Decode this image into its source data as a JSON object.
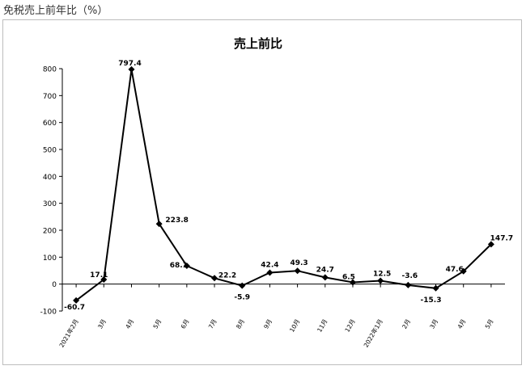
{
  "page_title": "免税売上前年比（%）",
  "chart_data": {
    "type": "line",
    "title": "売上前比",
    "xlabel": "",
    "ylabel": "",
    "ylim": [
      -100,
      800
    ],
    "yticks": [
      -100,
      0,
      100,
      200,
      300,
      400,
      500,
      600,
      700,
      800
    ],
    "grid": false,
    "legend": "none",
    "categories": [
      "2021年2月",
      "3月",
      "4月",
      "5月",
      "6月",
      "7月",
      "8月",
      "9月",
      "10月",
      "11月",
      "12月",
      "2022年1月",
      "2月",
      "3月",
      "4月",
      "5月"
    ],
    "series": [
      {
        "values": [
          -60.7,
          17.1,
          797.4,
          223.8,
          68.1,
          22.2,
          -5.9,
          42.4,
          49.3,
          24.7,
          6.5,
          12.5,
          -3.6,
          -15.3,
          47.6,
          147.7
        ],
        "labels": [
          "-60.7",
          "17.1",
          "797.4",
          "223.8",
          "68.1",
          "22.2",
          "-5.9",
          "42.4",
          "49.3",
          "24.7",
          "6.5",
          "12.5",
          "-3.6",
          "-15.3",
          "47.6",
          "147.7"
        ]
      }
    ],
    "line_color": "#000000",
    "marker": "diamond"
  }
}
